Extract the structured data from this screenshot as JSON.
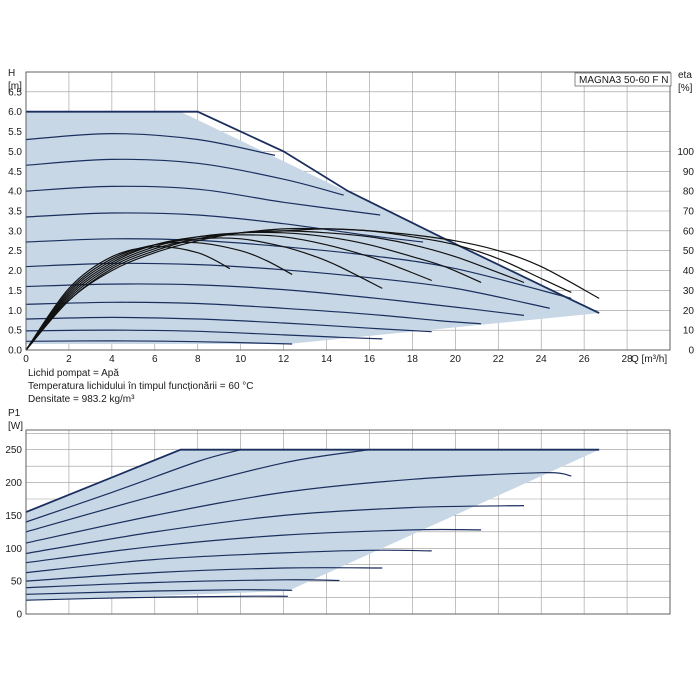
{
  "chart_data": [
    {
      "type": "line",
      "id": "head",
      "model_label": "MAGNA3 50-60 F N",
      "ylabel": "H",
      "yunit": "[m]",
      "y2label": "eta",
      "y2unit": "[%]",
      "xlabel": "Q [m³/h]",
      "xlim": [
        0,
        30
      ],
      "ylim": [
        0,
        7
      ],
      "y2lim": [
        0,
        140
      ],
      "grid": true,
      "xticks": [
        "0",
        "2",
        "4",
        "6",
        "8",
        "10",
        "12",
        "14",
        "16",
        "18",
        "20",
        "22",
        "24",
        "26",
        "28"
      ],
      "yticks": [
        "0.0",
        "0.5",
        "1.0",
        "1.5",
        "2.0",
        "2.5",
        "3.0",
        "3.5",
        "4.0",
        "4.5",
        "5.0",
        "5.5",
        "6.0",
        "6.5"
      ],
      "y2ticks": [
        "0",
        "10",
        "20",
        "30",
        "40",
        "50",
        "60",
        "70",
        "80",
        "90",
        "100"
      ],
      "envelope": [
        [
          0,
          6.0
        ],
        [
          7.2,
          6.0
        ],
        [
          26.7,
          0.93
        ],
        [
          26.7,
          0.93
        ],
        [
          12.2,
          0.15
        ],
        [
          0,
          0.15
        ]
      ],
      "series": [
        {
          "x": [
            0,
            4,
            8,
            12,
            15,
            19.5,
            24.5,
            26.7
          ],
          "y": [
            6.0,
            6.0,
            6.0,
            5.0,
            4.0,
            2.8,
            1.5,
            0.93
          ]
        },
        {
          "x": [
            0,
            4,
            8,
            11.6
          ],
          "y": [
            5.3,
            5.45,
            5.3,
            4.9
          ]
        },
        {
          "x": [
            0,
            4,
            8,
            12,
            14.8
          ],
          "y": [
            4.65,
            4.8,
            4.7,
            4.3,
            3.9
          ]
        },
        {
          "x": [
            0,
            4,
            8,
            12,
            16.5
          ],
          "y": [
            4.0,
            4.12,
            4.05,
            3.72,
            3.4
          ]
        },
        {
          "x": [
            0,
            4,
            8,
            12,
            16,
            18.5
          ],
          "y": [
            3.35,
            3.45,
            3.4,
            3.18,
            2.88,
            2.72
          ]
        },
        {
          "x": [
            0,
            4,
            8,
            12,
            16,
            20,
            25.4
          ],
          "y": [
            2.72,
            2.8,
            2.76,
            2.6,
            2.38,
            2.05,
            1.3
          ]
        },
        {
          "x": [
            0,
            4,
            8,
            12,
            16,
            20,
            24.4
          ],
          "y": [
            2.1,
            2.18,
            2.15,
            2.02,
            1.82,
            1.55,
            1.05
          ]
        },
        {
          "x": [
            0,
            4,
            8,
            12,
            16,
            20,
            23.2
          ],
          "y": [
            1.6,
            1.66,
            1.64,
            1.52,
            1.32,
            1.08,
            0.87
          ]
        },
        {
          "x": [
            0,
            4,
            8,
            12,
            16,
            19.2,
            21.2
          ],
          "y": [
            1.15,
            1.2,
            1.17,
            1.05,
            0.9,
            0.74,
            0.66
          ]
        },
        {
          "x": [
            0,
            4,
            8,
            12,
            16,
            18.9
          ],
          "y": [
            0.78,
            0.82,
            0.78,
            0.68,
            0.55,
            0.46
          ]
        },
        {
          "x": [
            0,
            4,
            8,
            12,
            14.6,
            16.6
          ],
          "y": [
            0.48,
            0.5,
            0.47,
            0.38,
            0.32,
            0.28
          ]
        },
        {
          "x": [
            0,
            4,
            8,
            12.4
          ],
          "y": [
            0.22,
            0.23,
            0.21,
            0.15
          ]
        }
      ],
      "efficiency_series": [
        {
          "x": [
            0,
            2,
            4,
            6,
            8,
            10,
            12,
            14,
            16,
            18,
            20,
            22,
            24,
            26.7
          ],
          "y": [
            0,
            25,
            40,
            49,
            55,
            59,
            60,
            61,
            60,
            58,
            55,
            50,
            42,
            26
          ]
        },
        {
          "x": [
            0,
            2,
            4,
            6,
            8,
            10,
            12,
            14,
            16,
            18,
            20,
            22,
            24,
            25.4
          ],
          "y": [
            0,
            25,
            41,
            50,
            56,
            59,
            61,
            61,
            60,
            57,
            53,
            46,
            36,
            29
          ]
        },
        {
          "x": [
            0,
            2,
            4,
            6,
            8,
            10,
            12,
            14,
            16,
            18,
            20,
            22,
            23.2
          ],
          "y": [
            0,
            26,
            42,
            51,
            56,
            59,
            60,
            59,
            57,
            53,
            47,
            39,
            34
          ]
        },
        {
          "x": [
            0,
            2,
            4,
            6,
            8,
            10,
            12,
            14,
            16,
            18,
            19.5,
            21.2
          ],
          "y": [
            0,
            27,
            43,
            52,
            57,
            59,
            59,
            57,
            53,
            47,
            42,
            34
          ]
        },
        {
          "x": [
            0,
            2,
            4,
            6,
            8,
            10,
            12,
            14,
            16,
            17.5,
            18.9
          ],
          "y": [
            0,
            28,
            44,
            53,
            57,
            58,
            57,
            53,
            47,
            41,
            35
          ]
        },
        {
          "x": [
            0,
            2,
            4,
            6,
            8,
            10,
            12,
            13.5,
            14.6,
            16.6
          ],
          "y": [
            0,
            29,
            45,
            53,
            56,
            56,
            52,
            47,
            42,
            31
          ]
        },
        {
          "x": [
            0,
            2,
            4,
            6,
            8,
            10,
            11.2,
            12.4
          ],
          "y": [
            0,
            30,
            46,
            53,
            54,
            50,
            45,
            38
          ]
        },
        {
          "x": [
            0,
            2,
            4,
            6,
            8,
            9.5
          ],
          "y": [
            0,
            31,
            47,
            52,
            49,
            41
          ]
        }
      ]
    },
    {
      "type": "line",
      "id": "power",
      "ylabel": "P1",
      "yunit": "[W]",
      "xlim": [
        0,
        30
      ],
      "ylim": [
        0,
        280
      ],
      "grid": true,
      "yticks": [
        "0",
        "50",
        "100",
        "150",
        "200",
        "250"
      ],
      "envelope": [
        [
          0,
          155
        ],
        [
          7.2,
          250
        ],
        [
          26.7,
          250
        ],
        [
          12.2,
          35
        ],
        [
          0,
          20
        ]
      ],
      "series": [
        {
          "x": [
            0,
            7.2,
            26.7
          ],
          "y": [
            155,
            250,
            250
          ]
        },
        {
          "x": [
            0,
            4,
            8,
            10
          ],
          "y": [
            140,
            185,
            232,
            250
          ]
        },
        {
          "x": [
            0,
            6,
            12,
            16
          ],
          "y": [
            125,
            180,
            230,
            250
          ]
        },
        {
          "x": [
            0,
            6,
            12,
            18,
            24,
            25.4
          ],
          "y": [
            108,
            150,
            185,
            205,
            215,
            210
          ]
        },
        {
          "x": [
            0,
            6,
            12,
            18,
            23.2
          ],
          "y": [
            92,
            125,
            150,
            162,
            165
          ]
        },
        {
          "x": [
            0,
            6,
            12,
            18,
            21.2
          ],
          "y": [
            78,
            103,
            120,
            128,
            128
          ]
        },
        {
          "x": [
            0,
            6,
            12,
            16,
            18.9
          ],
          "y": [
            63,
            83,
            93,
            97,
            96
          ]
        },
        {
          "x": [
            0,
            6,
            12,
            16.6
          ],
          "y": [
            50,
            63,
            70,
            70
          ]
        },
        {
          "x": [
            0,
            6,
            12,
            14.6
          ],
          "y": [
            40,
            48,
            52,
            51
          ]
        },
        {
          "x": [
            0,
            6,
            10,
            12.4
          ],
          "y": [
            30,
            35,
            37,
            36
          ]
        },
        {
          "x": [
            0,
            5,
            10,
            12.2
          ],
          "y": [
            21,
            25,
            27,
            27
          ]
        }
      ]
    }
  ],
  "notes": {
    "line1": "Lichid pompat = Apă",
    "line2": "Temperatura lichidului în timpul funcționării = 60 °C",
    "line3": "Densitate = 983.2 kg/m³"
  },
  "colors": {
    "curve": "#1b2f5e",
    "eta": "#111111",
    "fill": "#c7d7e6",
    "grid": "#9a9a9a"
  }
}
